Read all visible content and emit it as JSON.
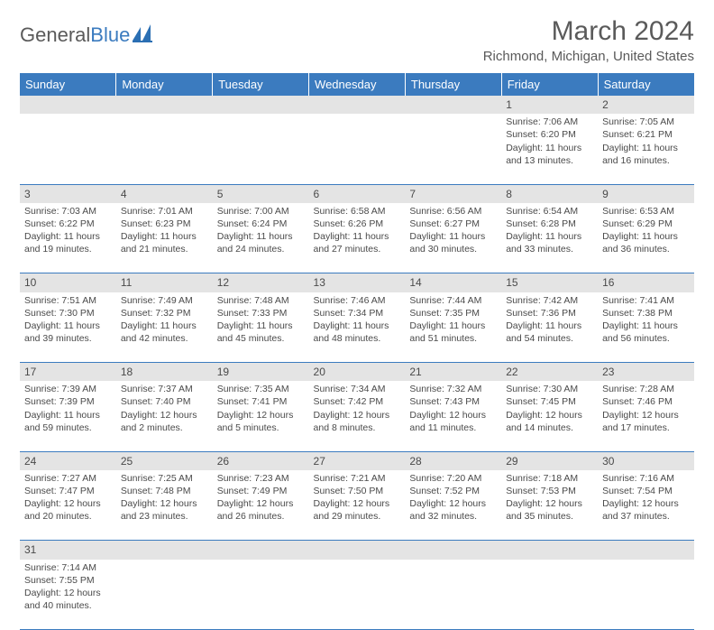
{
  "logo": {
    "text1": "General",
    "text2": "Blue"
  },
  "title": "March 2024",
  "location": "Richmond, Michigan, United States",
  "colors": {
    "header_bg": "#3b7bbf",
    "header_fg": "#ffffff",
    "daynum_bg": "#e4e4e4",
    "border": "#3b7bbf",
    "text": "#4a4a4a",
    "logo_accent": "#3b7bbf"
  },
  "weekdays": [
    "Sunday",
    "Monday",
    "Tuesday",
    "Wednesday",
    "Thursday",
    "Friday",
    "Saturday"
  ],
  "first_weekday": 5,
  "days": [
    {
      "n": 1,
      "sr": "7:06 AM",
      "ss": "6:20 PM",
      "dl": "11 hours and 13 minutes."
    },
    {
      "n": 2,
      "sr": "7:05 AM",
      "ss": "6:21 PM",
      "dl": "11 hours and 16 minutes."
    },
    {
      "n": 3,
      "sr": "7:03 AM",
      "ss": "6:22 PM",
      "dl": "11 hours and 19 minutes."
    },
    {
      "n": 4,
      "sr": "7:01 AM",
      "ss": "6:23 PM",
      "dl": "11 hours and 21 minutes."
    },
    {
      "n": 5,
      "sr": "7:00 AM",
      "ss": "6:24 PM",
      "dl": "11 hours and 24 minutes."
    },
    {
      "n": 6,
      "sr": "6:58 AM",
      "ss": "6:26 PM",
      "dl": "11 hours and 27 minutes."
    },
    {
      "n": 7,
      "sr": "6:56 AM",
      "ss": "6:27 PM",
      "dl": "11 hours and 30 minutes."
    },
    {
      "n": 8,
      "sr": "6:54 AM",
      "ss": "6:28 PM",
      "dl": "11 hours and 33 minutes."
    },
    {
      "n": 9,
      "sr": "6:53 AM",
      "ss": "6:29 PM",
      "dl": "11 hours and 36 minutes."
    },
    {
      "n": 10,
      "sr": "7:51 AM",
      "ss": "7:30 PM",
      "dl": "11 hours and 39 minutes."
    },
    {
      "n": 11,
      "sr": "7:49 AM",
      "ss": "7:32 PM",
      "dl": "11 hours and 42 minutes."
    },
    {
      "n": 12,
      "sr": "7:48 AM",
      "ss": "7:33 PM",
      "dl": "11 hours and 45 minutes."
    },
    {
      "n": 13,
      "sr": "7:46 AM",
      "ss": "7:34 PM",
      "dl": "11 hours and 48 minutes."
    },
    {
      "n": 14,
      "sr": "7:44 AM",
      "ss": "7:35 PM",
      "dl": "11 hours and 51 minutes."
    },
    {
      "n": 15,
      "sr": "7:42 AM",
      "ss": "7:36 PM",
      "dl": "11 hours and 54 minutes."
    },
    {
      "n": 16,
      "sr": "7:41 AM",
      "ss": "7:38 PM",
      "dl": "11 hours and 56 minutes."
    },
    {
      "n": 17,
      "sr": "7:39 AM",
      "ss": "7:39 PM",
      "dl": "11 hours and 59 minutes."
    },
    {
      "n": 18,
      "sr": "7:37 AM",
      "ss": "7:40 PM",
      "dl": "12 hours and 2 minutes."
    },
    {
      "n": 19,
      "sr": "7:35 AM",
      "ss": "7:41 PM",
      "dl": "12 hours and 5 minutes."
    },
    {
      "n": 20,
      "sr": "7:34 AM",
      "ss": "7:42 PM",
      "dl": "12 hours and 8 minutes."
    },
    {
      "n": 21,
      "sr": "7:32 AM",
      "ss": "7:43 PM",
      "dl": "12 hours and 11 minutes."
    },
    {
      "n": 22,
      "sr": "7:30 AM",
      "ss": "7:45 PM",
      "dl": "12 hours and 14 minutes."
    },
    {
      "n": 23,
      "sr": "7:28 AM",
      "ss": "7:46 PM",
      "dl": "12 hours and 17 minutes."
    },
    {
      "n": 24,
      "sr": "7:27 AM",
      "ss": "7:47 PM",
      "dl": "12 hours and 20 minutes."
    },
    {
      "n": 25,
      "sr": "7:25 AM",
      "ss": "7:48 PM",
      "dl": "12 hours and 23 minutes."
    },
    {
      "n": 26,
      "sr": "7:23 AM",
      "ss": "7:49 PM",
      "dl": "12 hours and 26 minutes."
    },
    {
      "n": 27,
      "sr": "7:21 AM",
      "ss": "7:50 PM",
      "dl": "12 hours and 29 minutes."
    },
    {
      "n": 28,
      "sr": "7:20 AM",
      "ss": "7:52 PM",
      "dl": "12 hours and 32 minutes."
    },
    {
      "n": 29,
      "sr": "7:18 AM",
      "ss": "7:53 PM",
      "dl": "12 hours and 35 minutes."
    },
    {
      "n": 30,
      "sr": "7:16 AM",
      "ss": "7:54 PM",
      "dl": "12 hours and 37 minutes."
    },
    {
      "n": 31,
      "sr": "7:14 AM",
      "ss": "7:55 PM",
      "dl": "12 hours and 40 minutes."
    }
  ],
  "labels": {
    "sunrise": "Sunrise:",
    "sunset": "Sunset:",
    "daylight": "Daylight:"
  }
}
